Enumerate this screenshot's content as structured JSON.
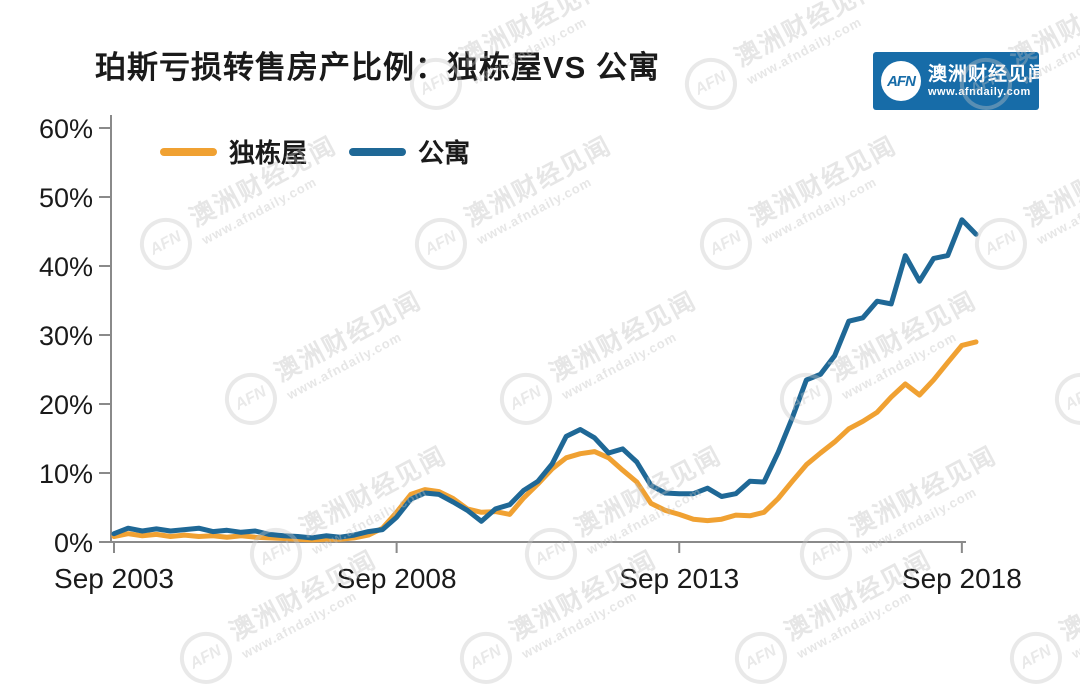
{
  "title": "珀斯亏损转售房产比例：独栋屋VS 公寓",
  "logo": {
    "abbr": "AFN",
    "brand": "澳洲财经见闻",
    "url": "www.afndaily.com",
    "bg_color": "#176CA8",
    "abbr_color": "#176CA8"
  },
  "watermark": {
    "abbr": "AFN",
    "brand": "澳洲财经见闻",
    "url": "www.afndaily.com"
  },
  "legend": [
    {
      "label": "独栋屋",
      "color": "#F0A132"
    },
    {
      "label": "公寓",
      "color": "#1F6896"
    }
  ],
  "chart_data": {
    "type": "line",
    "title": "珀斯亏损转售房产比例：独栋屋VS 公寓",
    "xlabel": "",
    "ylabel": "",
    "x_note": "quarterly from Sep 2003 to Dec 2018",
    "x_tick_labels": [
      "Sep 2003",
      "Sep 2008",
      "Sep 2013",
      "Sep 2018"
    ],
    "x_tick_indices": [
      0,
      20,
      40,
      60
    ],
    "y_ticks": [
      0,
      10,
      20,
      30,
      40,
      50,
      60
    ],
    "y_tick_suffix": "%",
    "ylim": [
      0,
      60
    ],
    "grid": false,
    "legend_position": "top-left",
    "axis_color": "#8a8a8a",
    "text_color": "#1a1a1a",
    "series": [
      {
        "name": "独栋屋",
        "color": "#F0A132",
        "values": [
          0.8,
          1.2,
          0.9,
          1.1,
          0.8,
          1.0,
          0.8,
          0.9,
          0.7,
          0.9,
          0.7,
          0.6,
          0.5,
          0.4,
          0.3,
          0.4,
          0.4,
          0.6,
          1.0,
          2.0,
          4.3,
          6.9,
          7.6,
          7.3,
          6.3,
          4.8,
          4.3,
          4.4,
          4.0,
          6.4,
          8.4,
          10.6,
          12.2,
          12.8,
          13.1,
          12.2,
          10.4,
          8.7,
          5.6,
          4.6,
          4.0,
          3.3,
          3.1,
          3.3,
          3.9,
          3.8,
          4.3,
          6.3,
          8.8,
          11.2,
          12.9,
          14.5,
          16.4,
          17.5,
          18.8,
          21.0,
          22.9,
          21.3,
          23.5,
          26.0,
          28.5,
          29.0
        ]
      },
      {
        "name": "公寓",
        "color": "#1F6896",
        "values": [
          1.2,
          2.0,
          1.6,
          1.9,
          1.6,
          1.8,
          2.0,
          1.5,
          1.7,
          1.4,
          1.6,
          1.1,
          0.9,
          0.8,
          0.6,
          0.9,
          0.7,
          1.0,
          1.5,
          1.8,
          3.6,
          6.2,
          7.1,
          6.9,
          5.8,
          4.6,
          3.0,
          4.8,
          5.4,
          7.5,
          8.8,
          11.3,
          15.3,
          16.3,
          15.1,
          12.9,
          13.5,
          11.6,
          8.2,
          7.1,
          7.0,
          7.0,
          7.8,
          6.6,
          7.0,
          8.8,
          8.7,
          13.0,
          18.0,
          23.5,
          24.3,
          27.0,
          32.0,
          32.5,
          34.9,
          34.5,
          41.5,
          37.8,
          41.1,
          41.5,
          46.7,
          44.6
        ]
      }
    ]
  }
}
